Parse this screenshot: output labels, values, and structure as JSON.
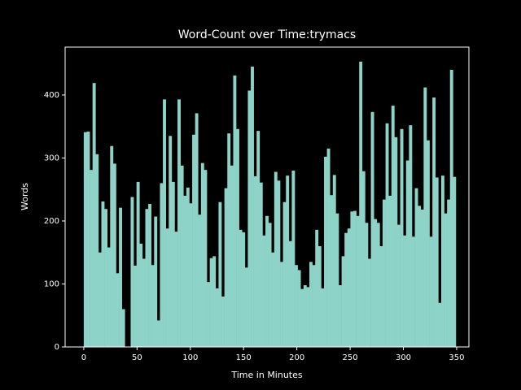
{
  "chart_data": {
    "type": "bar",
    "title": "Word-Count over Time:trymacs",
    "xlabel": "Time in Minutes",
    "ylabel": "Words",
    "color": "#8dd3c7",
    "x": [
      0,
      2.75,
      5.5,
      8.25,
      11,
      13.75,
      16.5,
      19.25,
      22,
      24.75,
      27.5,
      30.25,
      33,
      35.75,
      38.5,
      41.25,
      44,
      46.75,
      49.5,
      52.25,
      55,
      57.75,
      60.5,
      63.25,
      66,
      68.75,
      71.5,
      74.25,
      77,
      79.75,
      82.5,
      85.25,
      88,
      90.75,
      93.5,
      96.25,
      99,
      101.75,
      104.5,
      107.25,
      110,
      112.75,
      115.5,
      118.25,
      121,
      123.75,
      126.5,
      129.25,
      132,
      134.75,
      137.5,
      140.25,
      143,
      145.75,
      148.5,
      151.25,
      154,
      156.75,
      159.5,
      162.25,
      165,
      167.75,
      170.5,
      173.25,
      176,
      178.75,
      181.5,
      184.25,
      187,
      189.75,
      192.5,
      195.25,
      198,
      200.75,
      203.5,
      206.25,
      209,
      211.75,
      214.5,
      217.25,
      220,
      222.75,
      225.5,
      228.25,
      231,
      233.75,
      236.5,
      239.25,
      242,
      244.75,
      247.5,
      250.25,
      253,
      255.75,
      258.5,
      261.25,
      264,
      266.75,
      269.5,
      272.25,
      275,
      277.75,
      280.5,
      283.25,
      286,
      288.75,
      291.5,
      294.25,
      297,
      299.75,
      302.5,
      305.25,
      308,
      310.75,
      313.5,
      316.25,
      319,
      321.75,
      324.5,
      327.25,
      330,
      332.75,
      335.5,
      338.25,
      341,
      343.75,
      346.5
    ],
    "values": [
      341,
      342,
      281,
      419,
      306,
      150,
      231,
      219,
      158,
      319,
      291,
      117,
      221,
      60,
      0,
      0,
      238,
      129,
      262,
      164,
      140,
      219,
      227,
      130,
      207,
      42,
      260,
      393,
      188,
      335,
      262,
      183,
      393,
      288,
      240,
      253,
      228,
      337,
      371,
      210,
      292,
      281,
      103,
      141,
      144,
      93,
      230,
      80,
      252,
      339,
      288,
      431,
      346,
      186,
      182,
      126,
      407,
      445,
      271,
      343,
      261,
      177,
      208,
      197,
      150,
      278,
      264,
      135,
      230,
      272,
      168,
      280,
      130,
      122,
      92,
      98,
      95,
      135,
      130,
      186,
      160,
      93,
      302,
      315,
      241,
      273,
      212,
      98,
      144,
      181,
      188,
      215,
      216,
      208,
      453,
      279,
      197,
      140,
      373,
      203,
      197,
      160,
      234,
      355,
      240,
      383,
      333,
      194,
      346,
      177,
      296,
      352,
      175,
      252,
      224,
      218,
      412,
      328,
      175,
      396,
      269,
      70,
      272,
      212,
      234,
      440,
      270
    ],
    "xlim": [
      -17.5,
      361.5
    ],
    "ylim": [
      0,
      476
    ],
    "xticks": [
      0,
      50,
      100,
      150,
      200,
      250,
      300,
      350
    ],
    "yticks": [
      0,
      100,
      200,
      300,
      400
    ]
  }
}
